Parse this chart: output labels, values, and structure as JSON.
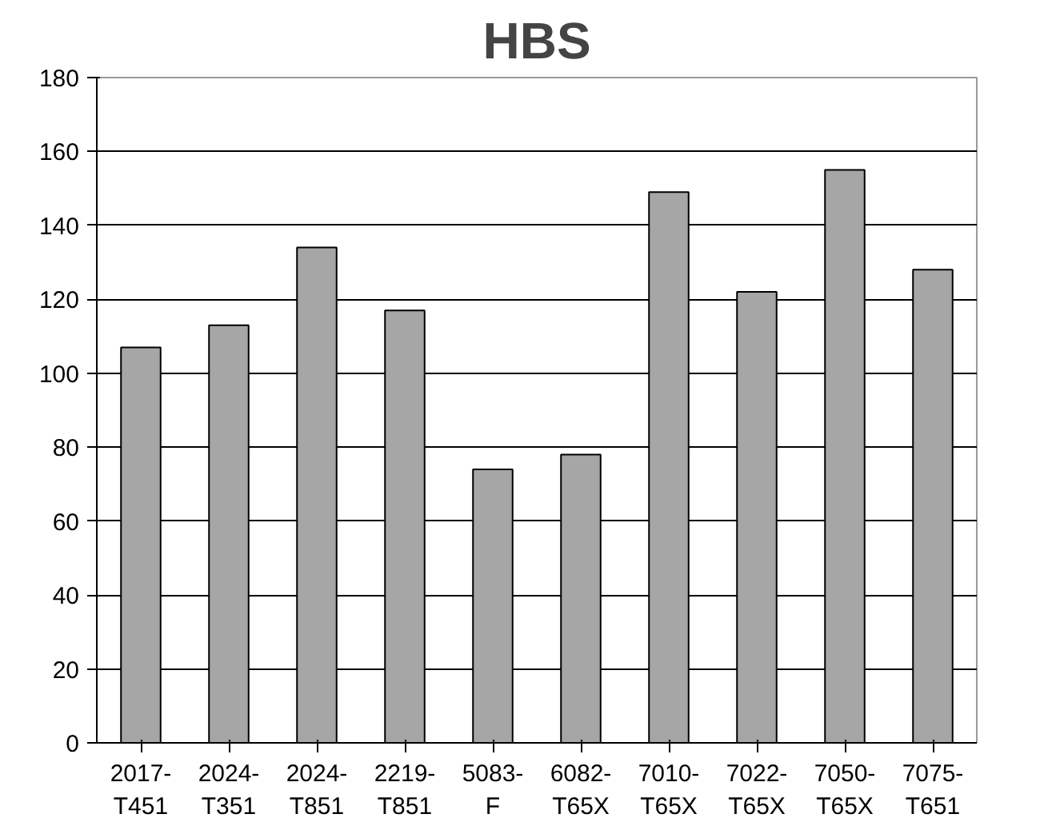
{
  "chart_data": {
    "type": "bar",
    "title": "HBS",
    "categories": [
      "2017-\nT451",
      "2024-\nT351",
      "2024-\nT851",
      "2219-\nT851",
      "5083-\nF",
      "6082-\nT65X",
      "7010-\nT65X",
      "7022-\nT65X",
      "7050-\nT65X",
      "7075-\nT651"
    ],
    "values": [
      107,
      113,
      134,
      117,
      74,
      78,
      149,
      122,
      155,
      128
    ],
    "color": "#a6a6a6",
    "ylim": [
      0,
      180
    ],
    "yticks": [
      0,
      20,
      40,
      60,
      80,
      100,
      120,
      140,
      160,
      180
    ],
    "grid": "y"
  }
}
